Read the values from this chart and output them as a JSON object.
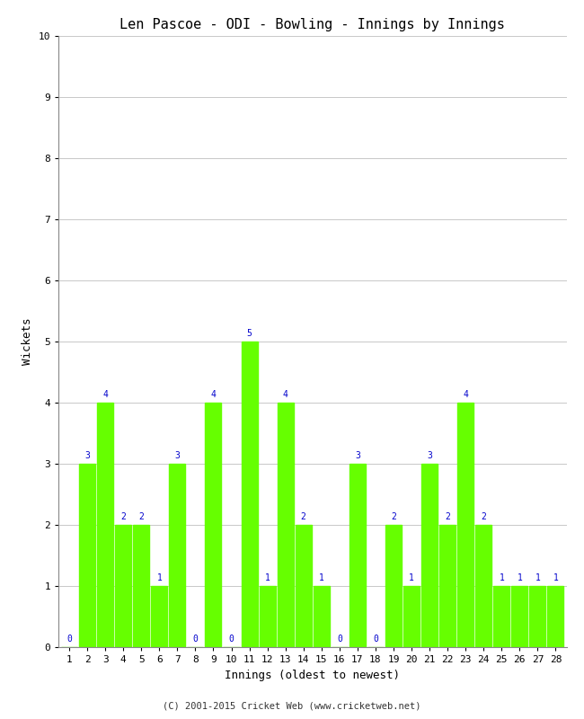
{
  "title": "Len Pascoe - ODI - Bowling - Innings by Innings",
  "xlabel": "Innings (oldest to newest)",
  "ylabel": "Wickets",
  "innings": [
    1,
    2,
    3,
    4,
    5,
    6,
    7,
    8,
    9,
    10,
    11,
    12,
    13,
    14,
    15,
    16,
    17,
    18,
    19,
    20,
    21,
    22,
    23,
    24,
    25,
    26,
    27,
    28
  ],
  "wickets": [
    0,
    3,
    4,
    2,
    2,
    1,
    3,
    0,
    4,
    0,
    5,
    1,
    4,
    2,
    1,
    0,
    3,
    0,
    2,
    1,
    3,
    2,
    4,
    2,
    1,
    1,
    1,
    1
  ],
  "bar_color": "#66ff00",
  "label_color": "#0000cc",
  "ylim": [
    0,
    10
  ],
  "yticks": [
    0,
    1,
    2,
    3,
    4,
    5,
    6,
    7,
    8,
    9,
    10
  ],
  "background_color": "#ffffff",
  "grid_color": "#c8c8c8",
  "footer": "(C) 2001-2015 Cricket Web (www.cricketweb.net)",
  "title_fontsize": 11,
  "axis_label_fontsize": 9,
  "tick_fontsize": 8,
  "bar_label_fontsize": 7,
  "footer_fontsize": 7.5
}
